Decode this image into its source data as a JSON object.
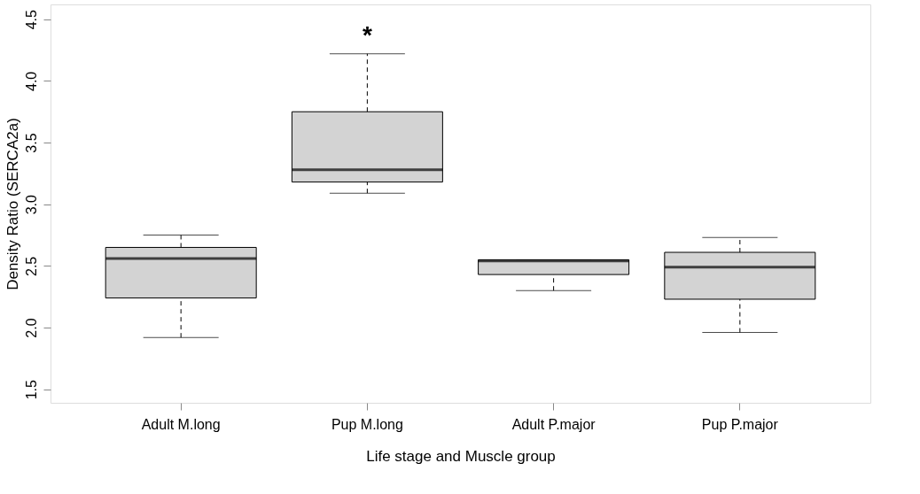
{
  "chart_data": {
    "type": "box",
    "xlabel": "Life stage and Muscle group",
    "ylabel": "Density Ratio (SERCA2a)",
    "categories": [
      "Adult M.long",
      "Pup M.long",
      "Adult P.major",
      "Pup P.major"
    ],
    "boxes": [
      {
        "low": 1.92,
        "q1": 2.24,
        "median": 2.56,
        "q3": 2.65,
        "high": 2.75
      },
      {
        "low": 3.09,
        "q1": 3.18,
        "median": 3.28,
        "q3": 3.75,
        "high": 4.22
      },
      {
        "low": 2.3,
        "q1": 2.43,
        "median": 2.54,
        "q3": 2.55,
        "high": 2.55
      },
      {
        "low": 1.96,
        "q1": 2.23,
        "median": 2.49,
        "q3": 2.61,
        "high": 2.73
      }
    ],
    "color": "#d3d3d3",
    "ylim": [
      1.39,
      4.62
    ],
    "yticks": [
      1.5,
      {
        "value": 2,
        "label": "2.0"
      },
      2.5,
      {
        "value": 3,
        "label": "3.0"
      },
      3.5,
      {
        "value": 4,
        "label": "4.0"
      },
      4.5
    ],
    "grid": false,
    "annotations": [
      "*"
    ]
  }
}
